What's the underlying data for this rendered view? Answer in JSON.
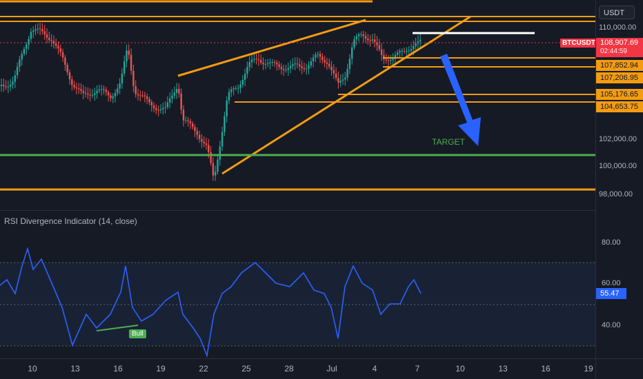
{
  "currency": "USDT",
  "symbol": "BTCUSDT",
  "current_price": "108,907.69",
  "countdown": "02:44:59",
  "price_axis": [
    "110,000.00",
    "102,000.00",
    "100,000.00",
    "98,000.00"
  ],
  "level_tags": [
    "107,852.94",
    "107,206.95",
    "105,176.65",
    "104,653.75"
  ],
  "target_label": "TARGET",
  "indicator": {
    "title": "RSI Divergence Indicator (14, close)",
    "axis": [
      "80.00",
      "60.00",
      "40.00"
    ],
    "current": "55.47",
    "bull_label": "Bull"
  },
  "time_axis": [
    "10",
    "13",
    "16",
    "19",
    "22",
    "25",
    "28",
    "Jul",
    "4",
    "7",
    "10",
    "13",
    "16",
    "19"
  ],
  "colors": {
    "background": "#161a25",
    "up": "#26a69a",
    "down": "#ef5350",
    "trendline": "#f39c12",
    "target": "#4caf50",
    "rsi": "#2962ff",
    "arrow": "#2962ff"
  }
}
